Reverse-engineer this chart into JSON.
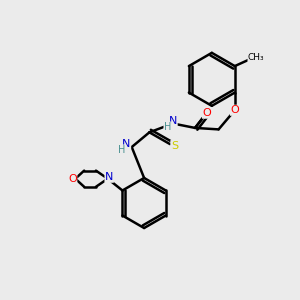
{
  "bg_color": "#ebebeb",
  "line_color": "#000000",
  "bond_width": 1.8,
  "atom_colors": {
    "O": "#ff0000",
    "N": "#0000cd",
    "S": "#cccc00",
    "H": "#4a9090",
    "C": "#000000"
  }
}
